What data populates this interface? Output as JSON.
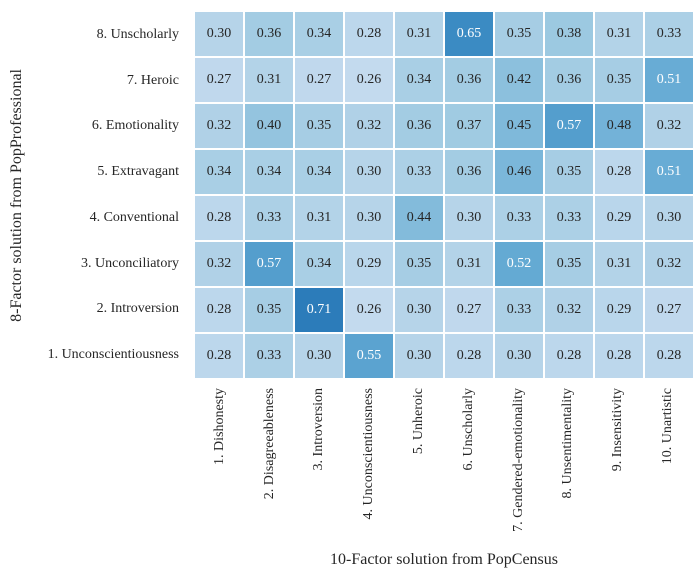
{
  "chart_data": {
    "type": "heatmap",
    "xlabel": "10-Factor solution from PopCensus",
    "ylabel": "8-Factor solution from PopProfessional",
    "x_categories": [
      "1. Dishonesty",
      "2. Disagreeableness",
      "3. Introversion",
      "4. Unconscientiousness",
      "5. Unheroic",
      "6. Unscholarly",
      "7. Gendered-emotionality",
      "8. Unsentimentality",
      "9. Insensitivity",
      "10. Unartistic"
    ],
    "y_categories": [
      "8. Unscholarly",
      "7. Heroic",
      "6. Emotionality",
      "5. Extravagant",
      "4. Conventional",
      "3. Unconciliatory",
      "2. Introversion",
      "1. Unconscientiousness"
    ],
    "values": [
      [
        0.3,
        0.36,
        0.34,
        0.28,
        0.31,
        0.65,
        0.35,
        0.38,
        0.31,
        0.33
      ],
      [
        0.27,
        0.31,
        0.27,
        0.26,
        0.34,
        0.36,
        0.42,
        0.36,
        0.35,
        0.51
      ],
      [
        0.32,
        0.4,
        0.35,
        0.32,
        0.36,
        0.37,
        0.45,
        0.57,
        0.48,
        0.32
      ],
      [
        0.34,
        0.34,
        0.34,
        0.3,
        0.33,
        0.36,
        0.46,
        0.35,
        0.28,
        0.51
      ],
      [
        0.28,
        0.33,
        0.31,
        0.3,
        0.44,
        0.3,
        0.33,
        0.33,
        0.29,
        0.3
      ],
      [
        0.32,
        0.57,
        0.34,
        0.29,
        0.35,
        0.31,
        0.52,
        0.35,
        0.31,
        0.32
      ],
      [
        0.28,
        0.35,
        0.71,
        0.26,
        0.3,
        0.27,
        0.33,
        0.32,
        0.29,
        0.27
      ],
      [
        0.28,
        0.33,
        0.3,
        0.55,
        0.3,
        0.28,
        0.3,
        0.28,
        0.28,
        0.28
      ]
    ],
    "decimals": 2,
    "vmin": 0,
    "vmax": 1,
    "colormap": {
      "name": "Blues",
      "anchors": [
        [
          0.0,
          "#f7fbff"
        ],
        [
          0.125,
          "#deebf7"
        ],
        [
          0.25,
          "#c6dbef"
        ],
        [
          0.375,
          "#9ecae1"
        ],
        [
          0.5,
          "#6baed6"
        ],
        [
          0.625,
          "#4292c6"
        ],
        [
          0.75,
          "#2171b5"
        ],
        [
          0.875,
          "#08519c"
        ],
        [
          1.0,
          "#08306b"
        ]
      ]
    },
    "annotation_text_dark": "#262626",
    "annotation_text_light": "#ffffff",
    "light_text_threshold": 0.5,
    "grid_gap_color": "#ffffff",
    "axis_text_color": "#262626",
    "legend": "none",
    "grid": "off"
  }
}
